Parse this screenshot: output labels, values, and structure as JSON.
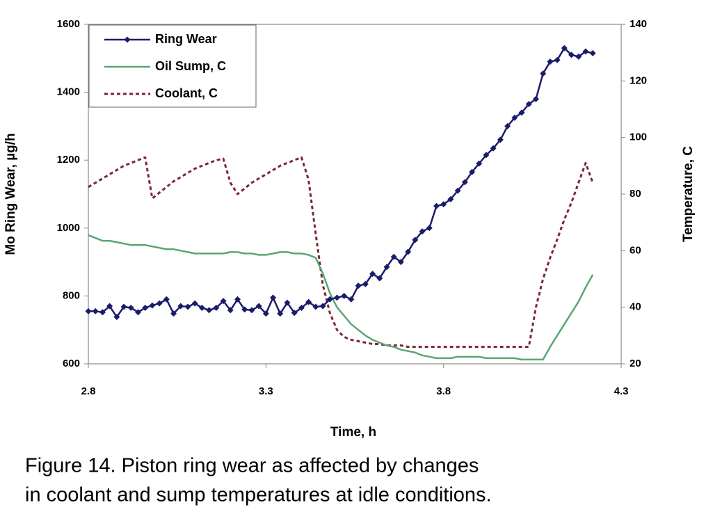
{
  "chart_data": {
    "type": "line",
    "xlabel": "Time, h",
    "ylabel": "Mo Ring Wear, µg/h",
    "y2label": "Temperature, C",
    "caption": [
      "Figure 14.  Piston ring wear as affected by changes",
      "in coolant and sump temperatures at idle conditions."
    ],
    "xlim": [
      2.8,
      4.3
    ],
    "xticks": [
      2.8,
      3.3,
      3.8,
      4.3
    ],
    "ylim": [
      600,
      1600
    ],
    "yticks": [
      600,
      800,
      1000,
      1200,
      1400,
      1600
    ],
    "y2lim": [
      20,
      140
    ],
    "y2ticks": [
      20,
      40,
      60,
      80,
      100,
      120,
      140
    ],
    "legend": "upper left",
    "x": [
      2.8,
      2.82,
      2.84,
      2.86,
      2.88,
      2.9,
      2.92,
      2.94,
      2.96,
      2.98,
      3.0,
      3.02,
      3.04,
      3.06,
      3.08,
      3.1,
      3.12,
      3.14,
      3.16,
      3.18,
      3.2,
      3.22,
      3.24,
      3.26,
      3.28,
      3.3,
      3.32,
      3.34,
      3.36,
      3.38,
      3.4,
      3.42,
      3.44,
      3.46,
      3.48,
      3.5,
      3.52,
      3.54,
      3.56,
      3.58,
      3.6,
      3.62,
      3.64,
      3.66,
      3.68,
      3.7,
      3.72,
      3.74,
      3.76,
      3.78,
      3.8,
      3.82,
      3.84,
      3.86,
      3.88,
      3.9,
      3.92,
      3.94,
      3.96,
      3.98,
      4.0,
      4.02,
      4.04,
      4.06,
      4.08,
      4.1,
      4.12,
      4.14,
      4.16,
      4.18,
      4.2,
      4.22
    ],
    "series": [
      {
        "name": "Ring Wear",
        "color": "#1b1b6b",
        "marker": "diamond",
        "axis": "y",
        "values": [
          755,
          755,
          752,
          770,
          738,
          768,
          765,
          752,
          765,
          772,
          778,
          790,
          748,
          770,
          768,
          778,
          765,
          758,
          765,
          785,
          758,
          790,
          760,
          758,
          770,
          748,
          795,
          748,
          780,
          750,
          765,
          782,
          768,
          770,
          790,
          795,
          800,
          790,
          830,
          835,
          865,
          852,
          885,
          915,
          900,
          930,
          965,
          990,
          1000,
          1065,
          1070,
          1085,
          1110,
          1135,
          1165,
          1190,
          1215,
          1235,
          1260,
          1300,
          1325,
          1340,
          1365,
          1380,
          1455,
          1490,
          1495,
          1530,
          1510,
          1505,
          1520,
          1515
        ]
      },
      {
        "name": "Oil Sump, C",
        "color": "#5aa574",
        "axis": "y2",
        "values": [
          65.5,
          64.5,
          63.5,
          63.5,
          63,
          62.5,
          62,
          62,
          62,
          61.5,
          61,
          60.5,
          60.5,
          60,
          59.5,
          59,
          59,
          59,
          59,
          59,
          59.5,
          59.5,
          59,
          59,
          58.5,
          58.5,
          59,
          59.5,
          59.5,
          59,
          59,
          58.5,
          57.5,
          52,
          45,
          40,
          37,
          34,
          32,
          30,
          28.5,
          27.5,
          26.5,
          26,
          25,
          24.5,
          24,
          23,
          22.5,
          22,
          22,
          22,
          22.5,
          22.5,
          22.5,
          22.5,
          22,
          22,
          22,
          22,
          22,
          21.5,
          21.5,
          21.5,
          21.5,
          26,
          30,
          34,
          38,
          42,
          47,
          51.5
        ]
      },
      {
        "name": "Coolant, C",
        "color": "#7a2638",
        "dash": true,
        "axis": "y2",
        "values": [
          82.5,
          84,
          85.5,
          87,
          88.5,
          90,
          91,
          92,
          93,
          78.5,
          80.5,
          82.5,
          84.5,
          86,
          87.5,
          89,
          90,
          91,
          92,
          92.5,
          84,
          80,
          82,
          84,
          85.5,
          87,
          88.5,
          90,
          91,
          92,
          93,
          85,
          66,
          48,
          38,
          32,
          29.5,
          28.5,
          28,
          27.5,
          27,
          27,
          26.5,
          26.5,
          26.5,
          26,
          26,
          26,
          26,
          26,
          26,
          26,
          26,
          26,
          26,
          26,
          26,
          26,
          26,
          26,
          26,
          26,
          26,
          40,
          50,
          57.5,
          64,
          71,
          77,
          84,
          91,
          84
        ]
      }
    ]
  }
}
